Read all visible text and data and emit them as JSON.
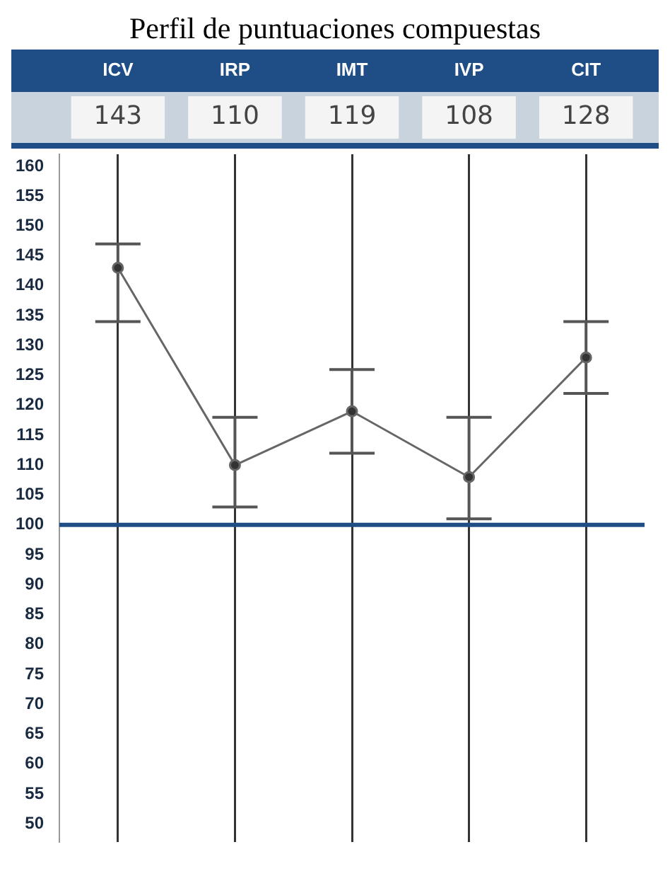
{
  "chart_data": {
    "type": "line",
    "title": "Perfil de puntuaciones compuestas",
    "categories": [
      "ICV",
      "IRP",
      "IMT",
      "IVP",
      "CIT"
    ],
    "series": [
      {
        "color": "#666666",
        "values": [
          143,
          110,
          119,
          108,
          128
        ],
        "errors": [
          [
            134,
            147
          ],
          [
            103,
            118
          ],
          [
            112,
            126
          ],
          [
            101,
            118
          ],
          [
            122,
            134
          ]
        ]
      }
    ],
    "annotations": [
      "143",
      "110",
      "119",
      "108",
      "128"
    ],
    "marker": "circle",
    "line_style": "solid",
    "grid": "x",
    "legend": false,
    "ylim": [
      47,
      162
    ],
    "yticks": [
      50,
      55,
      60,
      65,
      70,
      75,
      80,
      85,
      90,
      95,
      100,
      105,
      110,
      115,
      120,
      125,
      130,
      135,
      140,
      145,
      150,
      155,
      160
    ],
    "ref_lines": [
      {
        "axis": "y",
        "value": 100,
        "color": "#1f4e86"
      }
    ]
  }
}
